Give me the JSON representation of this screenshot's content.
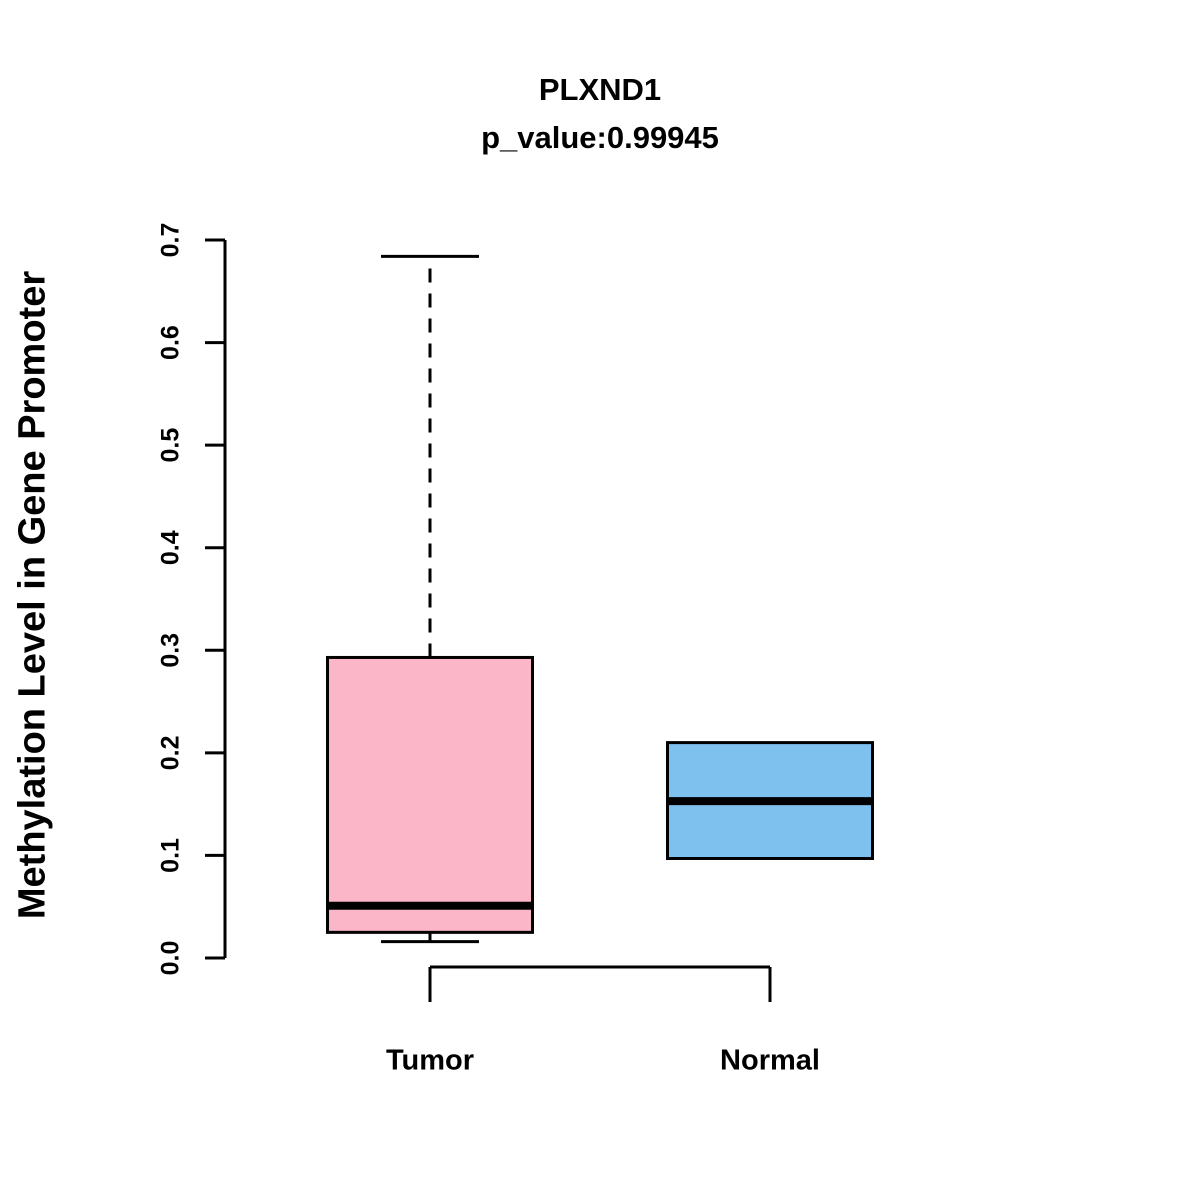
{
  "page": {
    "background": "#FFFFFF"
  },
  "chart_data": {
    "type": "boxplot",
    "title": "PLXND1",
    "subtitle": "p_value:0.99945",
    "ylabel": "Methylation Level in Gene Promoter",
    "xlabel": "",
    "categories": [
      "Tumor",
      "Normal"
    ],
    "ylim": [
      0.0,
      0.7
    ],
    "yticks": [
      0.0,
      0.1,
      0.2,
      0.3,
      0.4,
      0.5,
      0.6,
      0.7
    ],
    "grid": false,
    "legend": "none",
    "axis_color": "#000000",
    "series": [
      {
        "name": "Tumor",
        "box_color": "#FBB7C8",
        "border_color": "#000000",
        "whisker_low": 0.016,
        "q1": 0.025,
        "median": 0.051,
        "q3": 0.293,
        "whisker_high": 0.684,
        "whisker_line": "dashed"
      },
      {
        "name": "Normal",
        "box_color": "#7EC0EE",
        "border_color": "#000000",
        "whisker_low": 0.097,
        "q1": 0.097,
        "median": 0.153,
        "q3": 0.21,
        "whisker_high": 0.21,
        "whisker_line": "dashed"
      }
    ]
  }
}
